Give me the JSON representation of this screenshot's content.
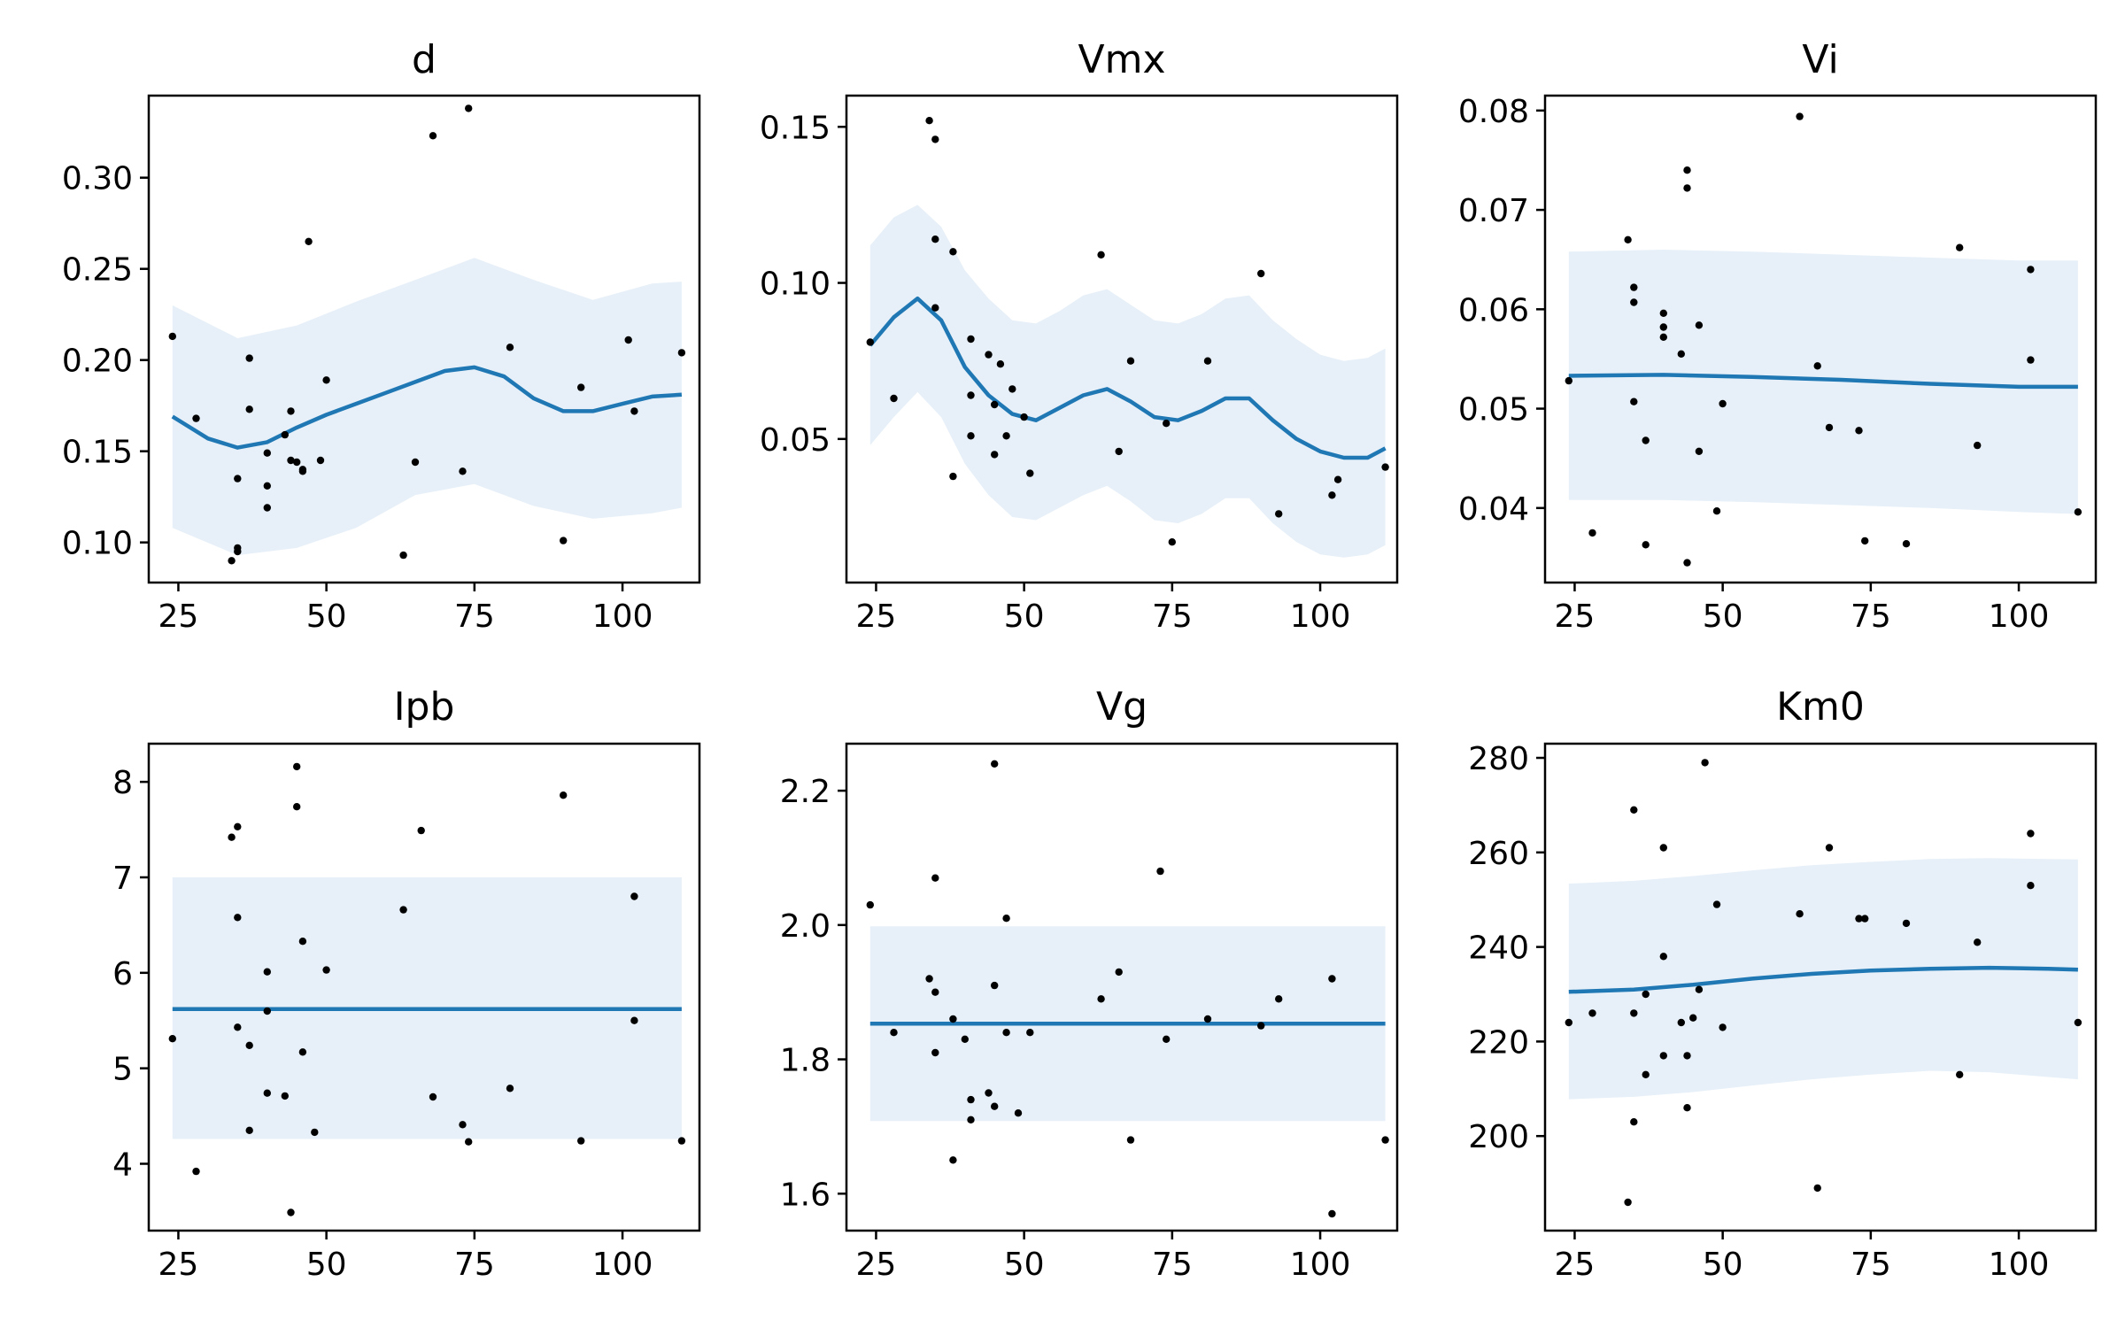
{
  "colors": {
    "band": "#e7f0f8",
    "line": "#1f77b4",
    "points": "#000000"
  },
  "chart_data": [
    {
      "type": "scatter",
      "title": "d",
      "xlim": [
        20,
        113
      ],
      "ylim": [
        0.078,
        0.345
      ],
      "xticks": [
        25,
        50,
        75,
        100
      ],
      "yticks": [
        0.1,
        0.15,
        0.2,
        0.25,
        0.3
      ],
      "ytick_decimals": 2,
      "points": [
        [
          24,
          0.213
        ],
        [
          28,
          0.168
        ],
        [
          34,
          0.09
        ],
        [
          35,
          0.097
        ],
        [
          35,
          0.095
        ],
        [
          35,
          0.135
        ],
        [
          37,
          0.201
        ],
        [
          37,
          0.173
        ],
        [
          40,
          0.149
        ],
        [
          40,
          0.131
        ],
        [
          40,
          0.119
        ],
        [
          43,
          0.159
        ],
        [
          44,
          0.145
        ],
        [
          44,
          0.172
        ],
        [
          45,
          0.144
        ],
        [
          46,
          0.14
        ],
        [
          46,
          0.139
        ],
        [
          47,
          0.265
        ],
        [
          49,
          0.145
        ],
        [
          50,
          0.189
        ],
        [
          63,
          0.093
        ],
        [
          65,
          0.144
        ],
        [
          68,
          0.323
        ],
        [
          73,
          0.139
        ],
        [
          74,
          0.338
        ],
        [
          81,
          0.207
        ],
        [
          90,
          0.101
        ],
        [
          93,
          0.185
        ],
        [
          101,
          0.211
        ],
        [
          102,
          0.172
        ],
        [
          110,
          0.204
        ]
      ],
      "fit": {
        "x": [
          24,
          30,
          35,
          40,
          45,
          50,
          55,
          60,
          65,
          70,
          75,
          80,
          85,
          90,
          95,
          100,
          105,
          110
        ],
        "y": [
          0.169,
          0.157,
          0.152,
          0.155,
          0.163,
          0.17,
          0.176,
          0.182,
          0.188,
          0.194,
          0.196,
          0.191,
          0.179,
          0.172,
          0.172,
          0.176,
          0.18,
          0.181
        ]
      },
      "band": {
        "x": [
          24,
          35,
          45,
          55,
          65,
          75,
          85,
          95,
          105,
          110
        ],
        "lower": [
          0.108,
          0.093,
          0.097,
          0.108,
          0.126,
          0.132,
          0.12,
          0.113,
          0.116,
          0.119
        ],
        "upper": [
          0.23,
          0.212,
          0.219,
          0.232,
          0.244,
          0.256,
          0.244,
          0.233,
          0.242,
          0.243
        ]
      }
    },
    {
      "type": "scatter",
      "title": "Vmx",
      "xlim": [
        20,
        113
      ],
      "ylim": [
        0.004,
        0.16
      ],
      "xticks": [
        25,
        50,
        75,
        100
      ],
      "yticks": [
        0.05,
        0.1,
        0.15
      ],
      "ytick_decimals": 2,
      "points": [
        [
          24,
          0.081
        ],
        [
          28,
          0.063
        ],
        [
          34,
          0.152
        ],
        [
          35,
          0.146
        ],
        [
          35,
          0.092
        ],
        [
          35,
          0.114
        ],
        [
          38,
          0.11
        ],
        [
          38,
          0.038
        ],
        [
          41,
          0.082
        ],
        [
          41,
          0.064
        ],
        [
          41,
          0.051
        ],
        [
          44,
          0.077
        ],
        [
          45,
          0.061
        ],
        [
          45,
          0.045
        ],
        [
          46,
          0.074
        ],
        [
          47,
          0.051
        ],
        [
          48,
          0.066
        ],
        [
          50,
          0.057
        ],
        [
          51,
          0.039
        ],
        [
          63,
          0.109
        ],
        [
          66,
          0.046
        ],
        [
          68,
          0.075
        ],
        [
          74,
          0.055
        ],
        [
          75,
          0.017
        ],
        [
          81,
          0.075
        ],
        [
          90,
          0.103
        ],
        [
          93,
          0.026
        ],
        [
          102,
          0.032
        ],
        [
          103,
          0.037
        ],
        [
          111,
          0.041
        ]
      ],
      "fit": {
        "x": [
          24,
          28,
          32,
          36,
          40,
          44,
          48,
          52,
          56,
          60,
          64,
          68,
          72,
          76,
          80,
          84,
          88,
          92,
          96,
          100,
          104,
          108,
          111
        ],
        "y": [
          0.08,
          0.089,
          0.095,
          0.088,
          0.073,
          0.064,
          0.058,
          0.056,
          0.06,
          0.064,
          0.066,
          0.062,
          0.057,
          0.056,
          0.059,
          0.063,
          0.063,
          0.056,
          0.05,
          0.046,
          0.044,
          0.044,
          0.047
        ]
      },
      "band": {
        "x": [
          24,
          28,
          32,
          36,
          40,
          44,
          48,
          52,
          56,
          60,
          64,
          68,
          72,
          76,
          80,
          84,
          88,
          92,
          96,
          100,
          104,
          108,
          111
        ],
        "lower": [
          0.048,
          0.057,
          0.065,
          0.057,
          0.042,
          0.032,
          0.025,
          0.024,
          0.028,
          0.032,
          0.035,
          0.03,
          0.024,
          0.023,
          0.026,
          0.031,
          0.031,
          0.023,
          0.017,
          0.013,
          0.012,
          0.013,
          0.016
        ],
        "upper": [
          0.112,
          0.121,
          0.125,
          0.118,
          0.104,
          0.095,
          0.088,
          0.087,
          0.091,
          0.096,
          0.098,
          0.093,
          0.088,
          0.087,
          0.09,
          0.095,
          0.096,
          0.088,
          0.082,
          0.077,
          0.075,
          0.076,
          0.079
        ]
      }
    },
    {
      "type": "scatter",
      "title": "Vi",
      "xlim": [
        20,
        113
      ],
      "ylim": [
        0.0325,
        0.0815
      ],
      "xticks": [
        25,
        50,
        75,
        100
      ],
      "yticks": [
        0.04,
        0.05,
        0.06,
        0.07,
        0.08
      ],
      "ytick_decimals": 2,
      "points": [
        [
          24,
          0.0528
        ],
        [
          28,
          0.0375
        ],
        [
          34,
          0.067
        ],
        [
          35,
          0.0622
        ],
        [
          35,
          0.0607
        ],
        [
          35,
          0.0507
        ],
        [
          37,
          0.0468
        ],
        [
          37,
          0.0363
        ],
        [
          40,
          0.0596
        ],
        [
          40,
          0.0582
        ],
        [
          40,
          0.0572
        ],
        [
          43,
          0.0555
        ],
        [
          44,
          0.0345
        ],
        [
          44,
          0.074
        ],
        [
          44,
          0.0722
        ],
        [
          46,
          0.0584
        ],
        [
          46,
          0.0457
        ],
        [
          49,
          0.0397
        ],
        [
          50,
          0.0505
        ],
        [
          63,
          0.0794
        ],
        [
          66,
          0.0543
        ],
        [
          68,
          0.0481
        ],
        [
          73,
          0.0478
        ],
        [
          74,
          0.0367
        ],
        [
          81,
          0.0364
        ],
        [
          90,
          0.0662
        ],
        [
          93,
          0.0463
        ],
        [
          102,
          0.0549
        ],
        [
          102,
          0.064
        ],
        [
          110,
          0.0396
        ]
      ],
      "fit": {
        "x": [
          24,
          40,
          55,
          70,
          85,
          100,
          110
        ],
        "y": [
          0.0533,
          0.0534,
          0.0532,
          0.0529,
          0.0525,
          0.0522,
          0.0522
        ]
      },
      "band": {
        "x": [
          24,
          40,
          55,
          70,
          85,
          100,
          110
        ],
        "lower": [
          0.0408,
          0.0408,
          0.0406,
          0.0403,
          0.04,
          0.0396,
          0.0394
        ],
        "upper": [
          0.0658,
          0.066,
          0.0658,
          0.0655,
          0.0652,
          0.0649,
          0.0649
        ]
      }
    },
    {
      "type": "scatter",
      "title": "Ipb",
      "xlim": [
        20,
        113
      ],
      "ylim": [
        3.3,
        8.4
      ],
      "xticks": [
        25,
        50,
        75,
        100
      ],
      "yticks": [
        4,
        5,
        6,
        7,
        8
      ],
      "ytick_decimals": 0,
      "points": [
        [
          24,
          5.31
        ],
        [
          28,
          3.92
        ],
        [
          34,
          7.42
        ],
        [
          35,
          7.53
        ],
        [
          35,
          6.58
        ],
        [
          35,
          5.43
        ],
        [
          37,
          5.24
        ],
        [
          37,
          4.35
        ],
        [
          40,
          6.01
        ],
        [
          40,
          5.6
        ],
        [
          40,
          4.74
        ],
        [
          43,
          4.71
        ],
        [
          44,
          3.49
        ],
        [
          45,
          8.16
        ],
        [
          45,
          7.74
        ],
        [
          46,
          6.33
        ],
        [
          46,
          5.17
        ],
        [
          48,
          4.33
        ],
        [
          50,
          6.03
        ],
        [
          63,
          6.66
        ],
        [
          66,
          7.49
        ],
        [
          68,
          4.7
        ],
        [
          73,
          4.41
        ],
        [
          74,
          4.23
        ],
        [
          81,
          4.79
        ],
        [
          90,
          7.86
        ],
        [
          93,
          4.24
        ],
        [
          102,
          6.8
        ],
        [
          102,
          5.5
        ],
        [
          110,
          4.24
        ]
      ],
      "fit": {
        "x": [
          24,
          110
        ],
        "y": [
          5.62,
          5.62
        ]
      },
      "band": {
        "x": [
          24,
          110
        ],
        "lower": [
          4.26,
          4.26
        ],
        "upper": [
          7.0,
          7.0
        ]
      }
    },
    {
      "type": "scatter",
      "title": "Vg",
      "xlim": [
        20,
        113
      ],
      "ylim": [
        1.545,
        2.27
      ],
      "xticks": [
        25,
        50,
        75,
        100
      ],
      "yticks": [
        1.6,
        1.8,
        2.0,
        2.2
      ],
      "ytick_decimals": 1,
      "points": [
        [
          24,
          2.03
        ],
        [
          28,
          1.84
        ],
        [
          34,
          1.92
        ],
        [
          35,
          1.9
        ],
        [
          35,
          2.07
        ],
        [
          35,
          1.81
        ],
        [
          38,
          1.86
        ],
        [
          38,
          1.65
        ],
        [
          40,
          1.83
        ],
        [
          41,
          1.71
        ],
        [
          41,
          1.74
        ],
        [
          44,
          1.75
        ],
        [
          45,
          2.24
        ],
        [
          45,
          1.91
        ],
        [
          45,
          1.73
        ],
        [
          47,
          2.01
        ],
        [
          47,
          1.84
        ],
        [
          49,
          1.72
        ],
        [
          51,
          1.84
        ],
        [
          63,
          1.89
        ],
        [
          66,
          1.93
        ],
        [
          68,
          1.68
        ],
        [
          73,
          2.08
        ],
        [
          74,
          1.83
        ],
        [
          81,
          1.86
        ],
        [
          90,
          1.85
        ],
        [
          93,
          1.89
        ],
        [
          102,
          1.92
        ],
        [
          102,
          1.57
        ],
        [
          111,
          1.68
        ]
      ],
      "fit": {
        "x": [
          24,
          111
        ],
        "y": [
          1.853,
          1.853
        ]
      },
      "band": {
        "x": [
          24,
          111
        ],
        "lower": [
          1.708,
          1.708
        ],
        "upper": [
          1.998,
          1.998
        ]
      }
    },
    {
      "type": "scatter",
      "title": "Km0",
      "xlim": [
        20,
        113
      ],
      "ylim": [
        180,
        283
      ],
      "xticks": [
        25,
        50,
        75,
        100
      ],
      "yticks": [
        200,
        220,
        240,
        260,
        280
      ],
      "ytick_decimals": 0,
      "points": [
        [
          24,
          224
        ],
        [
          28,
          226
        ],
        [
          34,
          186
        ],
        [
          35,
          269
        ],
        [
          35,
          226
        ],
        [
          35,
          203
        ],
        [
          37,
          230
        ],
        [
          37,
          213
        ],
        [
          40,
          261
        ],
        [
          40,
          238
        ],
        [
          40,
          217
        ],
        [
          43,
          224
        ],
        [
          44,
          217
        ],
        [
          44,
          206
        ],
        [
          45,
          225
        ],
        [
          46,
          231
        ],
        [
          47,
          279
        ],
        [
          49,
          249
        ],
        [
          50,
          223
        ],
        [
          63,
          247
        ],
        [
          66,
          189
        ],
        [
          68,
          261
        ],
        [
          73,
          246
        ],
        [
          74,
          246
        ],
        [
          81,
          245
        ],
        [
          90,
          213
        ],
        [
          93,
          241
        ],
        [
          102,
          253
        ],
        [
          102,
          264
        ],
        [
          110,
          224
        ]
      ],
      "fit": {
        "x": [
          24,
          35,
          45,
          55,
          65,
          75,
          85,
          95,
          105,
          110
        ],
        "y": [
          230.5,
          231.0,
          232.0,
          233.3,
          234.3,
          235.0,
          235.4,
          235.6,
          235.4,
          235.2
        ]
      },
      "band": {
        "x": [
          24,
          35,
          45,
          55,
          65,
          75,
          85,
          95,
          105,
          110
        ],
        "lower": [
          207.8,
          208.3,
          209.3,
          210.7,
          212.0,
          213.0,
          213.8,
          213.5,
          212.5,
          212.0
        ],
        "upper": [
          253.4,
          254.0,
          255.0,
          256.2,
          257.3,
          258.0,
          258.6,
          258.8,
          258.6,
          258.5
        ]
      }
    }
  ]
}
